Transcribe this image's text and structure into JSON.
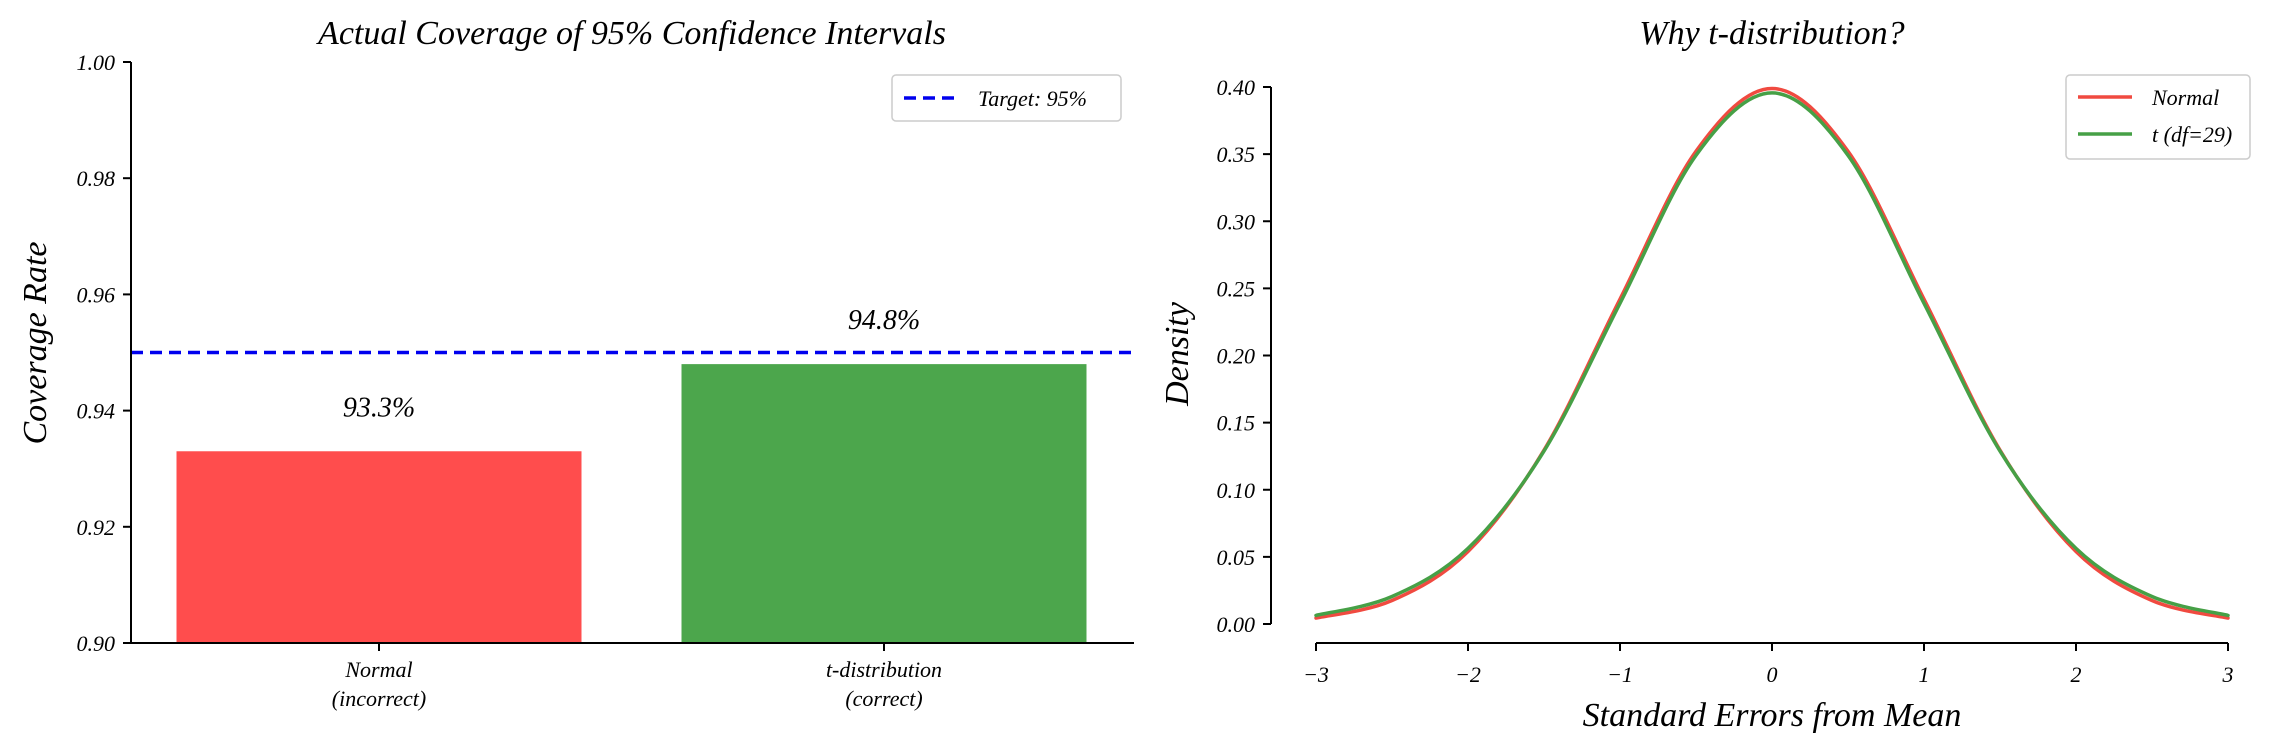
{
  "colors": {
    "red": "#ff4d4d",
    "green": "#4ca64c",
    "target": "#0000ee",
    "normal_line": "#f04a40",
    "t_line": "#46a046"
  },
  "chart_data": [
    {
      "type": "bar",
      "title": "Actual Coverage of 95% Confidence Intervals",
      "xlabel": "",
      "ylabel": "Coverage Rate",
      "categories": [
        [
          "Normal",
          "(incorrect)"
        ],
        [
          "t-distribution",
          "(correct)"
        ]
      ],
      "values": [
        0.933,
        0.948
      ],
      "bar_colors": [
        "#ff4d4d",
        "#4ca64c"
      ],
      "data_labels": [
        "93.3%",
        "94.8%"
      ],
      "ylim": [
        0.9,
        1.0
      ],
      "yticks": [
        0.9,
        0.92,
        0.94,
        0.96,
        0.98,
        1.0
      ],
      "ytick_labels": [
        "0.90",
        "0.92",
        "0.94",
        "0.96",
        "0.98",
        "1.00"
      ],
      "reference_line": {
        "y": 0.95,
        "style": "dashed",
        "color": "#0000ee",
        "label": "Target: 95%"
      },
      "legend": {
        "placement": "top-right",
        "entries": [
          "Target: 95%"
        ]
      },
      "grid": false
    },
    {
      "type": "line",
      "title": "Why t-distribution?",
      "xlabel": "Standard Errors from Mean",
      "ylabel": "Density",
      "xlim": [
        -3,
        3
      ],
      "ylim": [
        0,
        0.4
      ],
      "xticks": [
        -3,
        -2,
        -1,
        0,
        1,
        2,
        3
      ],
      "xtick_labels": [
        "−3",
        "−2",
        "−1",
        "0",
        "1",
        "2",
        "3"
      ],
      "yticks": [
        0,
        0.05,
        0.1,
        0.15,
        0.2,
        0.25,
        0.3,
        0.35,
        0.4
      ],
      "ytick_labels": [
        "0.00",
        "0.05",
        "0.10",
        "0.15",
        "0.20",
        "0.25",
        "0.30",
        "0.35",
        "0.40"
      ],
      "series": [
        {
          "name": "Normal",
          "color": "#f04a40",
          "x": [
            -3,
            -2.5,
            -2,
            -1.5,
            -1,
            -0.5,
            0,
            0.5,
            1,
            1.5,
            2,
            2.5,
            3
          ],
          "y": [
            0.0044,
            0.0175,
            0.054,
            0.1295,
            0.242,
            0.3521,
            0.3989,
            0.3521,
            0.242,
            0.1295,
            0.054,
            0.0175,
            0.0044
          ]
        },
        {
          "name": "t (df=29)",
          "color": "#46a046",
          "x": [
            -3,
            -2.5,
            -2,
            -1.5,
            -1,
            -0.5,
            0,
            0.5,
            1,
            1.5,
            2,
            2.5,
            3
          ],
          "y": [
            0.0064,
            0.0205,
            0.0563,
            0.1288,
            0.2389,
            0.3491,
            0.3956,
            0.3491,
            0.2389,
            0.1288,
            0.0563,
            0.0205,
            0.0064
          ]
        }
      ],
      "legend": {
        "placement": "top-right",
        "entries": [
          "Normal",
          "t (df=29)"
        ]
      },
      "grid": false
    }
  ]
}
